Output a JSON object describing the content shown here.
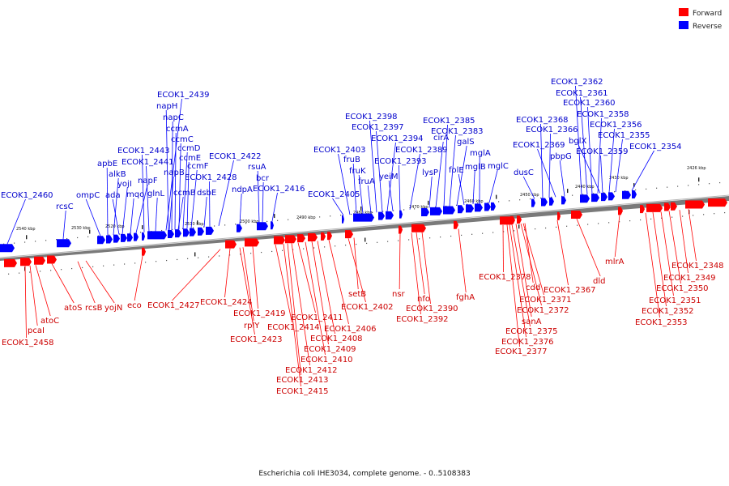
{
  "legend": [
    {
      "label": "Forward",
      "color": "#ff0000"
    },
    {
      "label": "Reverse",
      "color": "#0000ff"
    }
  ],
  "caption": "Escherichia coli IHE3034, complete genome. - 0..5108383",
  "kbp_ticks": [
    "2540 kbp",
    "2530 kbp",
    "2520 kbp",
    "2510 kbp",
    "2500 kbp",
    "2490 kbp",
    "2480 kbp",
    "2470 kbp",
    "2460 kbp",
    "2450 kbp",
    "2440 kbp",
    "2430 kbp",
    "2426 kbp"
  ],
  "reverse_genes": [
    "ECOK1_2460",
    "rcsC",
    "ompC",
    "apbE",
    "alkB",
    "ada",
    "yojI",
    "mqo",
    "napF",
    "ECOK1_2443",
    "ECOK1_2441",
    "glnL",
    "ECOK1_2439",
    "napH",
    "napC",
    "ccmA",
    "ccmC",
    "ccmD",
    "ccmE",
    "ccmF",
    "napB",
    "ccmB",
    "dsbE",
    "ECOK1_2428",
    "ECOK1_2422",
    "ndpA",
    "rsuA",
    "bcr",
    "ECOK1_2416",
    "ECOK1_2405",
    "ECOK1_2403",
    "fruB",
    "fruK",
    "fruA",
    "ECOK1_2398",
    "ECOK1_2397",
    "ECOK1_2394",
    "yeiM",
    "ECOK1_2393",
    "ECOK1_2389",
    "lysP",
    "cirA",
    "ECOK1_2385",
    "ECOK1_2383",
    "galS",
    "folE",
    "mglB",
    "mglA",
    "mglC",
    "dusC",
    "ECOK1_2368",
    "ECOK1_2366",
    "ECOK1_2369",
    "pbpG",
    "ECOK1_2362",
    "ECOK1_2361",
    "ECOK1_2360",
    "ECOK1_2358",
    "bglX",
    "ECOK1_2356",
    "ECOK1_2355",
    "ECOK1_2359",
    "ECOK1_2354"
  ],
  "forward_genes": [
    "ECOK1_2458",
    "pcaI",
    "atoC",
    "atoS",
    "rcsB",
    "yojN",
    "eco",
    "ECOK1_2427",
    "ECOK1_2424",
    "ECOK1_2423",
    "rplY",
    "ECOK1_2419",
    "ECOK1_2414",
    "ECOK1_2415",
    "ECOK1_2413",
    "ECOK1_2412",
    "ECOK1_2411",
    "ECOK1_2410",
    "ECOK1_2409",
    "ECOK1_2408",
    "ECOK1_2406",
    "ECOK1_2402",
    "setB",
    "nsr",
    "nfo",
    "ECOK1_2390",
    "ECOK1_2392",
    "fghA",
    "ECOK1_2378",
    "ECOK1_2377",
    "ECOK1_2376",
    "ECOK1_2375",
    "sanA",
    "ECOK1_2372",
    "ECOK1_2371",
    "cdd",
    "ECOK1_2367",
    "dld",
    "mlrA",
    "ECOK1_2353",
    "ECOK1_2352",
    "ECOK1_2351",
    "ECOK1_2350",
    "ECOK1_2349",
    "ECOK1_2348"
  ]
}
